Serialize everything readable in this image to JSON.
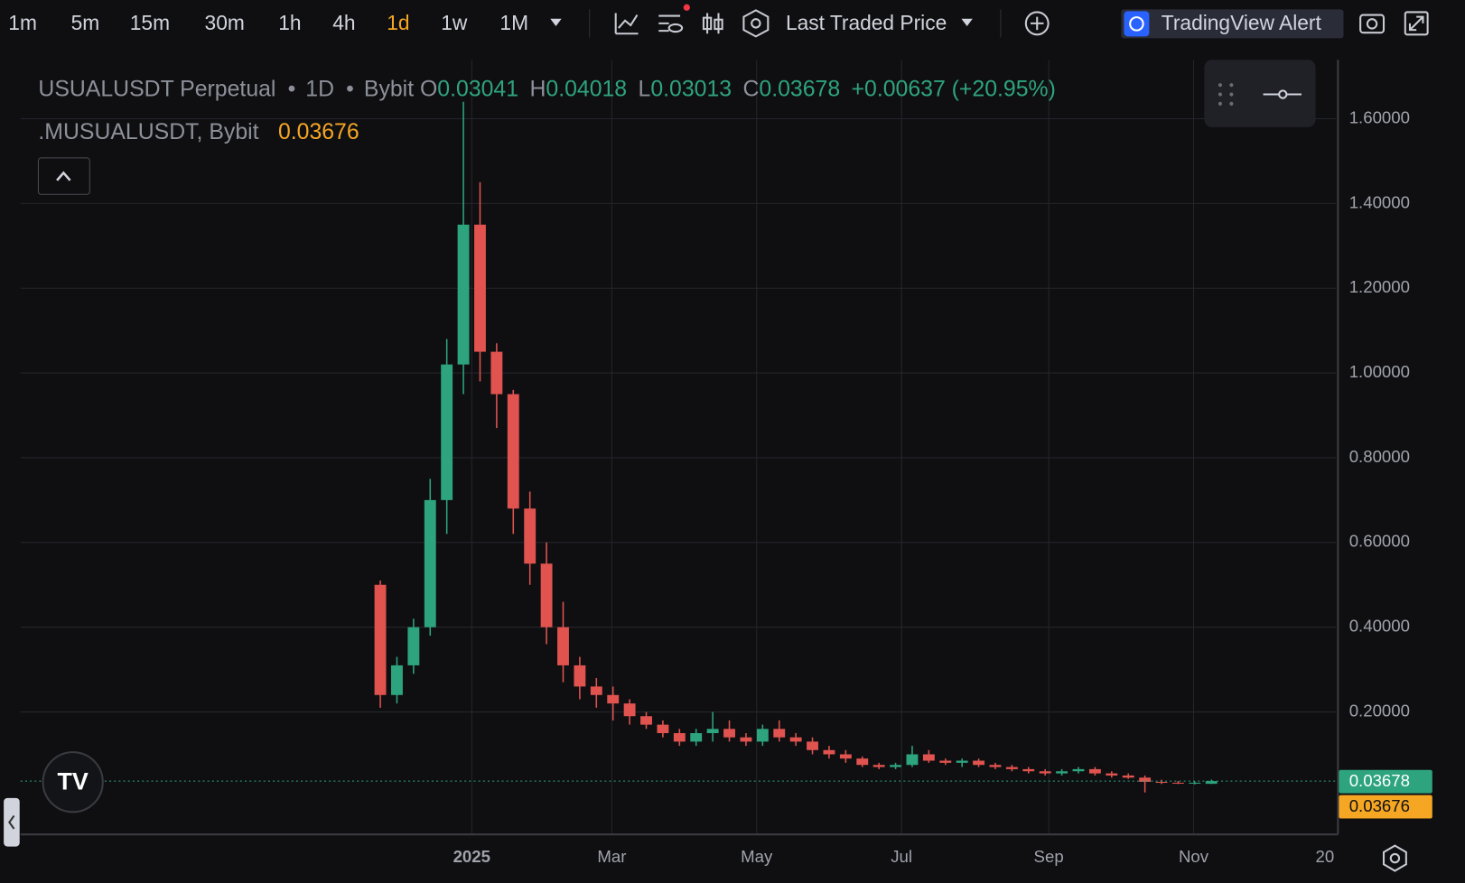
{
  "toolbar": {
    "intervals": [
      "1m",
      "5m",
      "15m",
      "30m",
      "1h",
      "4h",
      "1d",
      "1w",
      "1M"
    ],
    "active": "1d",
    "price_source": "Last Traded Price",
    "alert": "TradingView Alert"
  },
  "chart_data": {
    "type": "candlestick",
    "legend": {
      "symbol": "USUALUSDT Perpetual",
      "interval": "1D",
      "exchange": "Bybit",
      "fields": [
        {
          "label": "O",
          "value": "0.03041"
        },
        {
          "label": "H",
          "value": "0.04018"
        },
        {
          "label": "L",
          "value": "0.03013"
        },
        {
          "label": "C",
          "value": "0.03678"
        }
      ],
      "change": "+0.00637 (+20.95%)",
      "index_name": ".MUSUALUSDT, Bybit",
      "index_value": "0.03676"
    },
    "x": [
      -42,
      -35,
      -28,
      -21,
      -14,
      -7,
      0,
      7,
      14,
      21,
      28,
      35,
      42,
      49,
      56,
      63,
      70,
      77,
      84,
      91,
      98,
      105,
      112,
      119,
      126,
      133,
      140,
      147,
      154,
      161,
      168,
      175,
      182,
      189,
      196,
      203,
      210,
      217,
      224,
      231,
      238,
      245,
      252,
      259,
      266,
      273,
      280,
      287,
      294,
      301,
      308
    ],
    "open": [
      0.5,
      0.24,
      0.31,
      0.4,
      0.7,
      1.02,
      1.35,
      1.05,
      0.95,
      0.68,
      0.55,
      0.4,
      0.31,
      0.26,
      0.24,
      0.22,
      0.19,
      0.17,
      0.15,
      0.13,
      0.15,
      0.16,
      0.14,
      0.13,
      0.16,
      0.14,
      0.13,
      0.11,
      0.1,
      0.09,
      0.075,
      0.07,
      0.075,
      0.1,
      0.085,
      0.08,
      0.085,
      0.075,
      0.07,
      0.065,
      0.06,
      0.055,
      0.06,
      0.065,
      0.055,
      0.05,
      0.045,
      0.035,
      0.033,
      0.032,
      0.03041
    ],
    "high": [
      0.51,
      0.33,
      0.42,
      0.75,
      1.08,
      1.64,
      1.45,
      1.07,
      0.96,
      0.72,
      0.6,
      0.46,
      0.33,
      0.28,
      0.26,
      0.23,
      0.2,
      0.18,
      0.16,
      0.16,
      0.2,
      0.18,
      0.15,
      0.17,
      0.18,
      0.15,
      0.14,
      0.12,
      0.11,
      0.095,
      0.08,
      0.08,
      0.12,
      0.11,
      0.09,
      0.09,
      0.09,
      0.08,
      0.075,
      0.07,
      0.065,
      0.065,
      0.07,
      0.07,
      0.06,
      0.055,
      0.05,
      0.04,
      0.037,
      0.036,
      0.04018
    ],
    "low": [
      0.21,
      0.22,
      0.29,
      0.38,
      0.62,
      0.95,
      0.98,
      0.87,
      0.62,
      0.5,
      0.36,
      0.27,
      0.23,
      0.21,
      0.18,
      0.17,
      0.16,
      0.14,
      0.12,
      0.12,
      0.13,
      0.13,
      0.12,
      0.12,
      0.13,
      0.12,
      0.1,
      0.09,
      0.08,
      0.07,
      0.065,
      0.065,
      0.07,
      0.08,
      0.075,
      0.07,
      0.07,
      0.065,
      0.06,
      0.055,
      0.05,
      0.05,
      0.055,
      0.05,
      0.045,
      0.042,
      0.01,
      0.03,
      0.03,
      0.029,
      0.03013
    ],
    "close": [
      0.24,
      0.31,
      0.4,
      0.7,
      1.02,
      1.35,
      1.05,
      0.95,
      0.68,
      0.55,
      0.4,
      0.31,
      0.26,
      0.24,
      0.22,
      0.19,
      0.17,
      0.15,
      0.13,
      0.15,
      0.16,
      0.14,
      0.13,
      0.16,
      0.14,
      0.13,
      0.11,
      0.1,
      0.09,
      0.075,
      0.07,
      0.075,
      0.1,
      0.085,
      0.08,
      0.085,
      0.075,
      0.07,
      0.065,
      0.06,
      0.055,
      0.06,
      0.065,
      0.055,
      0.05,
      0.045,
      0.035,
      0.033,
      0.032,
      0.033,
      0.03678
    ],
    "period": 7,
    "up_color": "#2ea47e",
    "down_color": "#e0534f",
    "xlim": [
      -190,
      364
    ],
    "xticks": [
      {
        "value": 0,
        "label": "2025"
      },
      {
        "value": 59,
        "label": "Mar"
      },
      {
        "value": 120,
        "label": "May"
      },
      {
        "value": 181,
        "label": "Jul"
      },
      {
        "value": 243,
        "label": "Sep"
      },
      {
        "value": 304,
        "label": "Nov"
      },
      {
        "value": 365,
        "label": "20"
      }
    ],
    "ylim": [
      -0.089,
      1.739
    ],
    "yticks": [
      {
        "value": 0.2,
        "label": "0.20000"
      },
      {
        "value": 0.4,
        "label": "0.40000"
      },
      {
        "value": 0.6,
        "label": "0.60000"
      },
      {
        "value": 0.8,
        "label": "0.80000"
      },
      {
        "value": 1.0,
        "label": "1.00000"
      },
      {
        "value": 1.2,
        "label": "1.20000"
      },
      {
        "value": 1.4,
        "label": "1.40000"
      },
      {
        "value": 1.6,
        "label": "1.60000"
      }
    ],
    "grid": true,
    "last_price": 0.03678,
    "last_price_color": "#2ea47e",
    "index_price": 0.03676,
    "index_price_color": "#f5a623"
  }
}
